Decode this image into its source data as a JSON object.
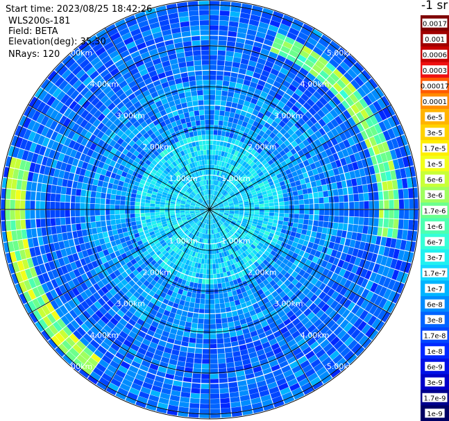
{
  "header": {
    "start_time": "Start time: 2023/08/25 18:42:26",
    "instrument": "WLS200s-181",
    "field": "Field: BETA",
    "elevation": "Elevation(deg): 35.30",
    "nrays": "NRays: 120"
  },
  "colorbar": {
    "unit": "-1 sr",
    "labels": [
      "0.0017",
      "0.001",
      "0.0006",
      "0.0003",
      "0.00017",
      "0.0001",
      "6e-5",
      "3e-5",
      "1.7e-5",
      "1e-5",
      "6e-6",
      "3e-6",
      "1.7e-6",
      "1e-6",
      "6e-7",
      "3e-7",
      "1.7e-7",
      "1e-7",
      "6e-8",
      "3e-8",
      "1.7e-8",
      "1e-8",
      "6e-9",
      "3e-9",
      "1.7e-9",
      "1e-9"
    ],
    "colors": [
      "#7f0000",
      "#a00000",
      "#c80000",
      "#ee1010",
      "#ff5a00",
      "#ff8c00",
      "#ffb400",
      "#ffd200",
      "#ffee00",
      "#f2ff1a",
      "#c8ff37",
      "#9fff5f",
      "#6cff8c",
      "#4dffb0",
      "#36ffd7",
      "#20f0f0",
      "#14d7ff",
      "#00b4ff",
      "#008cff",
      "#0064ff",
      "#0046ff",
      "#0028ff",
      "#0010e6",
      "#0000c8",
      "#00008c",
      "#000064"
    ]
  },
  "chart_data": {
    "type": "heatmap",
    "projection": "polar-ppi",
    "n_rays": 120,
    "range_units": "km",
    "max_range_km": 5.0,
    "range_rings_km": [
      1.0,
      2.0,
      3.0,
      4.0,
      5.0
    ],
    "range_labels": [
      "1.00km",
      "2.00km",
      "3.00km",
      "4.00km",
      "5.00km"
    ],
    "radial_lines_deg": [
      0,
      30,
      60,
      90,
      120,
      150,
      180,
      210,
      240,
      270,
      300,
      330
    ],
    "field": "BETA",
    "value_bands": [
      {
        "range_km": [
          0.0,
          1.8
        ],
        "typical": "1.7e-7",
        "note": "near-field turquoise/cyan"
      },
      {
        "range_km": [
          1.8,
          3.2
        ],
        "typical": "6e-8",
        "note": "light blue"
      },
      {
        "range_km": [
          3.2,
          5.0
        ],
        "typical": "3e-8",
        "note": "blue with scattered cyan"
      },
      {
        "range_km": [
          4.2,
          4.6
        ],
        "azimuth_deg": [
          20,
          100
        ],
        "typical": "1.7e-6",
        "note": "yellow-orange arc on the east side"
      },
      {
        "range_km": [
          4.5,
          5.0
        ],
        "azimuth_deg": [
          215,
          285
        ],
        "typical": "3e-6",
        "note": "yellow arc on the south-west side"
      }
    ]
  }
}
